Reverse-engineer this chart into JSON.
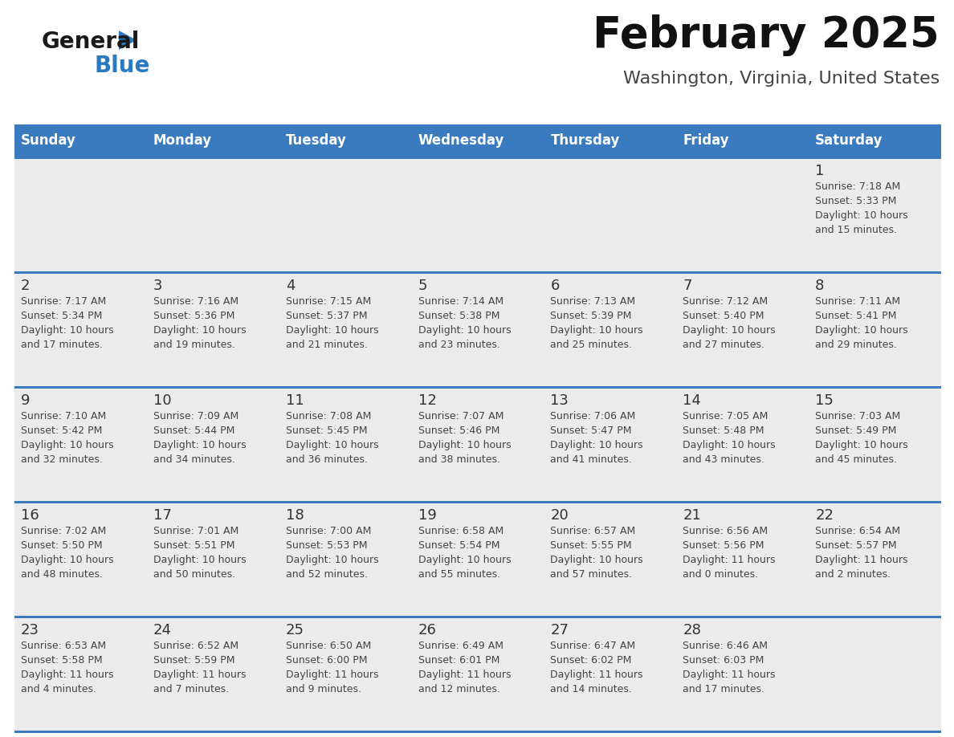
{
  "title": "February 2025",
  "subtitle": "Washington, Virginia, United States",
  "header_bg": "#3a7abf",
  "header_text_color": "#ffffff",
  "days_of_week": [
    "Sunday",
    "Monday",
    "Tuesday",
    "Wednesday",
    "Thursday",
    "Friday",
    "Saturday"
  ],
  "cell_bg": "#ebebeb",
  "cell_text_color": "#333333",
  "divider_color": "#3a7abf",
  "logo_general_color": "#1a1a1a",
  "logo_blue_color": "#2a7abf",
  "weeks": [
    [
      null,
      null,
      null,
      null,
      null,
      null,
      1
    ],
    [
      2,
      3,
      4,
      5,
      6,
      7,
      8
    ],
    [
      9,
      10,
      11,
      12,
      13,
      14,
      15
    ],
    [
      16,
      17,
      18,
      19,
      20,
      21,
      22
    ],
    [
      23,
      24,
      25,
      26,
      27,
      28,
      null
    ]
  ],
  "cell_data": {
    "1": {
      "sunrise": "7:18 AM",
      "sunset": "5:33 PM",
      "daylight_line1": "Daylight: 10 hours",
      "daylight_line2": "and 15 minutes."
    },
    "2": {
      "sunrise": "7:17 AM",
      "sunset": "5:34 PM",
      "daylight_line1": "Daylight: 10 hours",
      "daylight_line2": "and 17 minutes."
    },
    "3": {
      "sunrise": "7:16 AM",
      "sunset": "5:36 PM",
      "daylight_line1": "Daylight: 10 hours",
      "daylight_line2": "and 19 minutes."
    },
    "4": {
      "sunrise": "7:15 AM",
      "sunset": "5:37 PM",
      "daylight_line1": "Daylight: 10 hours",
      "daylight_line2": "and 21 minutes."
    },
    "5": {
      "sunrise": "7:14 AM",
      "sunset": "5:38 PM",
      "daylight_line1": "Daylight: 10 hours",
      "daylight_line2": "and 23 minutes."
    },
    "6": {
      "sunrise": "7:13 AM",
      "sunset": "5:39 PM",
      "daylight_line1": "Daylight: 10 hours",
      "daylight_line2": "and 25 minutes."
    },
    "7": {
      "sunrise": "7:12 AM",
      "sunset": "5:40 PM",
      "daylight_line1": "Daylight: 10 hours",
      "daylight_line2": "and 27 minutes."
    },
    "8": {
      "sunrise": "7:11 AM",
      "sunset": "5:41 PM",
      "daylight_line1": "Daylight: 10 hours",
      "daylight_line2": "and 29 minutes."
    },
    "9": {
      "sunrise": "7:10 AM",
      "sunset": "5:42 PM",
      "daylight_line1": "Daylight: 10 hours",
      "daylight_line2": "and 32 minutes."
    },
    "10": {
      "sunrise": "7:09 AM",
      "sunset": "5:44 PM",
      "daylight_line1": "Daylight: 10 hours",
      "daylight_line2": "and 34 minutes."
    },
    "11": {
      "sunrise": "7:08 AM",
      "sunset": "5:45 PM",
      "daylight_line1": "Daylight: 10 hours",
      "daylight_line2": "and 36 minutes."
    },
    "12": {
      "sunrise": "7:07 AM",
      "sunset": "5:46 PM",
      "daylight_line1": "Daylight: 10 hours",
      "daylight_line2": "and 38 minutes."
    },
    "13": {
      "sunrise": "7:06 AM",
      "sunset": "5:47 PM",
      "daylight_line1": "Daylight: 10 hours",
      "daylight_line2": "and 41 minutes."
    },
    "14": {
      "sunrise": "7:05 AM",
      "sunset": "5:48 PM",
      "daylight_line1": "Daylight: 10 hours",
      "daylight_line2": "and 43 minutes."
    },
    "15": {
      "sunrise": "7:03 AM",
      "sunset": "5:49 PM",
      "daylight_line1": "Daylight: 10 hours",
      "daylight_line2": "and 45 minutes."
    },
    "16": {
      "sunrise": "7:02 AM",
      "sunset": "5:50 PM",
      "daylight_line1": "Daylight: 10 hours",
      "daylight_line2": "and 48 minutes."
    },
    "17": {
      "sunrise": "7:01 AM",
      "sunset": "5:51 PM",
      "daylight_line1": "Daylight: 10 hours",
      "daylight_line2": "and 50 minutes."
    },
    "18": {
      "sunrise": "7:00 AM",
      "sunset": "5:53 PM",
      "daylight_line1": "Daylight: 10 hours",
      "daylight_line2": "and 52 minutes."
    },
    "19": {
      "sunrise": "6:58 AM",
      "sunset": "5:54 PM",
      "daylight_line1": "Daylight: 10 hours",
      "daylight_line2": "and 55 minutes."
    },
    "20": {
      "sunrise": "6:57 AM",
      "sunset": "5:55 PM",
      "daylight_line1": "Daylight: 10 hours",
      "daylight_line2": "and 57 minutes."
    },
    "21": {
      "sunrise": "6:56 AM",
      "sunset": "5:56 PM",
      "daylight_line1": "Daylight: 11 hours",
      "daylight_line2": "and 0 minutes."
    },
    "22": {
      "sunrise": "6:54 AM",
      "sunset": "5:57 PM",
      "daylight_line1": "Daylight: 11 hours",
      "daylight_line2": "and 2 minutes."
    },
    "23": {
      "sunrise": "6:53 AM",
      "sunset": "5:58 PM",
      "daylight_line1": "Daylight: 11 hours",
      "daylight_line2": "and 4 minutes."
    },
    "24": {
      "sunrise": "6:52 AM",
      "sunset": "5:59 PM",
      "daylight_line1": "Daylight: 11 hours",
      "daylight_line2": "and 7 minutes."
    },
    "25": {
      "sunrise": "6:50 AM",
      "sunset": "6:00 PM",
      "daylight_line1": "Daylight: 11 hours",
      "daylight_line2": "and 9 minutes."
    },
    "26": {
      "sunrise": "6:49 AM",
      "sunset": "6:01 PM",
      "daylight_line1": "Daylight: 11 hours",
      "daylight_line2": "and 12 minutes."
    },
    "27": {
      "sunrise": "6:47 AM",
      "sunset": "6:02 PM",
      "daylight_line1": "Daylight: 11 hours",
      "daylight_line2": "and 14 minutes."
    },
    "28": {
      "sunrise": "6:46 AM",
      "sunset": "6:03 PM",
      "daylight_line1": "Daylight: 11 hours",
      "daylight_line2": "and 17 minutes."
    }
  },
  "fig_width": 11.88,
  "fig_height": 9.18,
  "dpi": 100
}
